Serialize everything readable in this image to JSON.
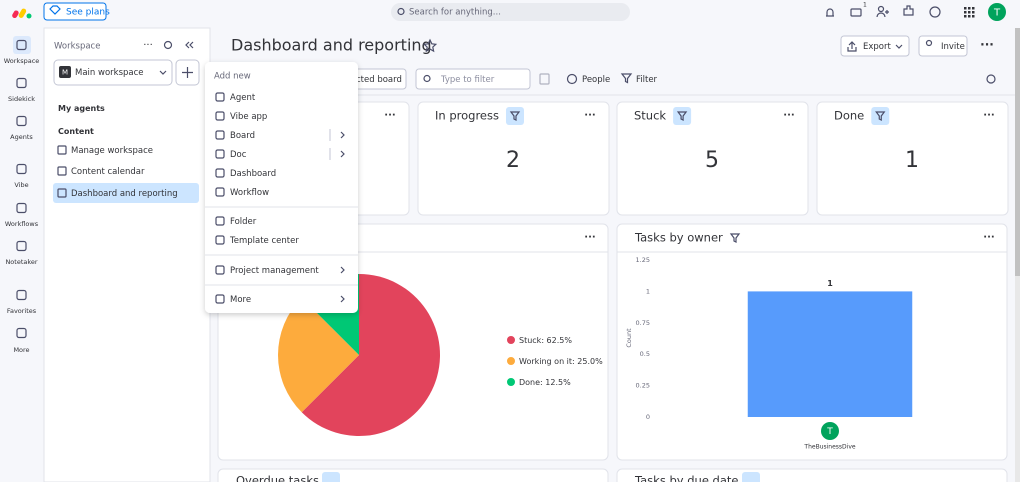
{
  "topbar": {
    "plans": "See plans",
    "search": "Search for anything...",
    "badge": "1",
    "avatar": "T"
  },
  "rail": [
    "Workspace",
    "Sidekick",
    "Agents",
    "Vibe",
    "Workflows",
    "Notetaker",
    "Favorites",
    "More"
  ],
  "sidebar": {
    "title": "Workspace",
    "workspace": "Main workspace",
    "sections": [
      "My agents",
      "Content"
    ],
    "items": [
      "Manage workspace",
      "Content calendar",
      "Dashboard and reporting"
    ]
  },
  "header": {
    "title": "Dashboard and reporting",
    "export": "Export",
    "invite": "Invite"
  },
  "toolbar": {
    "board": "cted board",
    "filter_placeholder": "Type to filter",
    "people": "People",
    "filter": "Filter"
  },
  "counters": [
    {
      "title": "In progress",
      "value": 2
    },
    {
      "title": "Stuck",
      "value": 5
    },
    {
      "title": "Done",
      "value": 1
    }
  ],
  "pie": {
    "type": "pie",
    "labels": [
      "Stuck: 62.5%",
      "Working on it: 25.0%",
      "Done: 12.5%"
    ],
    "values": [
      62.5,
      25,
      12.5
    ],
    "colors": [
      "#e2445c",
      "#fdab3d",
      "#00c875"
    ]
  },
  "bar_chart": {
    "type": "bar",
    "title": "Tasks by owner",
    "ylabel": "Count",
    "categories": [
      "TheBusinessDive"
    ],
    "avatar": "T",
    "values": [
      1
    ],
    "ylim": [
      0,
      1.25
    ],
    "yticks": [
      0,
      0.25,
      0.5,
      0.75,
      1,
      1.25
    ],
    "color": "#579bfc"
  },
  "bottom": [
    "Overdue tasks",
    "Tasks by due date"
  ],
  "menu": {
    "title": "Add new",
    "items": [
      "Agent",
      "Vibe app",
      "Board",
      "Doc",
      "Dashboard",
      "Workflow",
      "Folder",
      "Template center",
      "Project management",
      "More"
    ]
  }
}
